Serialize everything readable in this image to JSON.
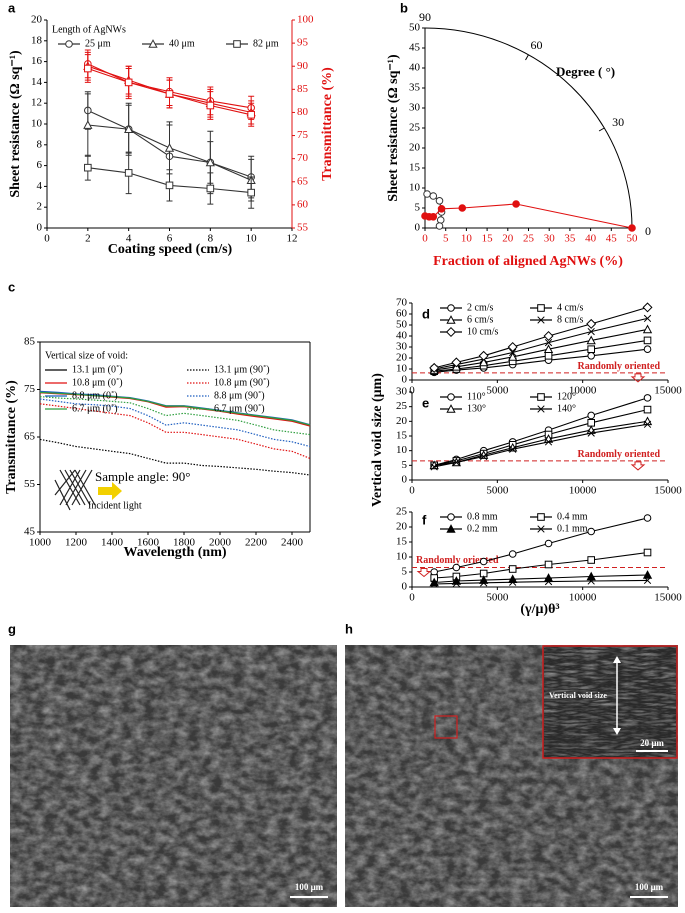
{
  "chart_data": [
    {
      "type": "line",
      "label": "a",
      "xlabel": "Coating speed (cm/s)",
      "ylabel": "Sheet resistance (Ω sq⁻¹)",
      "y2label": "Transmittance (%)",
      "legend_title": "Length of AgNWs",
      "xlim": [
        0,
        12
      ],
      "xticks": [
        0,
        2,
        4,
        6,
        8,
        10,
        12
      ],
      "ylim": [
        0,
        20
      ],
      "yticks": [
        0,
        2,
        4,
        6,
        8,
        10,
        12,
        14,
        16,
        18,
        20
      ],
      "y2lim": [
        55,
        100
      ],
      "y2ticks": [
        55,
        60,
        65,
        70,
        75,
        80,
        85,
        90,
        95,
        100
      ],
      "x": [
        2,
        4,
        6,
        8,
        10
      ],
      "series": [
        {
          "name": "25 μm",
          "color": "#333333",
          "marker": "circle",
          "values": [
            11.3,
            9.5,
            6.9,
            6.3,
            4.9
          ],
          "errors": [
            1.8,
            2.3,
            3.0,
            3.0,
            2.0
          ]
        },
        {
          "name": "40 μm",
          "color": "#333333",
          "marker": "triangle",
          "values": [
            9.9,
            9.5,
            7.7,
            6.3,
            4.6
          ],
          "errors": [
            3.0,
            2.5,
            2.5,
            2.0,
            2.0
          ]
        },
        {
          "name": "82 μm",
          "color": "#333333",
          "marker": "square",
          "values": [
            5.8,
            5.3,
            4.1,
            3.8,
            3.4
          ],
          "errors": [
            1.2,
            2.0,
            1.5,
            1.5,
            1.5
          ]
        },
        {
          "color": "#e01010",
          "marker": "circle",
          "axis": "y2",
          "values": [
            90.5,
            86.5,
            84.5,
            82.5,
            81
          ],
          "errors": [
            3,
            3.5,
            3,
            3,
            2.5
          ]
        },
        {
          "color": "#e01010",
          "marker": "triangle",
          "axis": "y2",
          "values": [
            90,
            87,
            84,
            82,
            80
          ],
          "errors": [
            3,
            3,
            3,
            3,
            2.5
          ]
        },
        {
          "color": "#e01010",
          "marker": "square",
          "axis": "y2",
          "values": [
            89.5,
            86.5,
            84,
            81.5,
            79.5
          ],
          "errors": [
            3,
            3,
            3,
            3,
            2.5
          ]
        }
      ]
    },
    {
      "type": "polar-line",
      "label": "b",
      "xlabel": "Fraction of aligned AgNWs (%)",
      "xlabel_color": "#e01010",
      "ylabel": "Sheet resistance (Ω sq⁻¹)",
      "xlim": [
        0,
        50
      ],
      "xticks": [
        0,
        5,
        10,
        15,
        20,
        25,
        30,
        35,
        40,
        45,
        50
      ],
      "ylim": [
        0,
        50
      ],
      "yticks": [
        0,
        5,
        10,
        15,
        20,
        25,
        30,
        35,
        40,
        45,
        50
      ],
      "angle_ticks": [
        90,
        60,
        30,
        0
      ],
      "angle_label": "Degree ( °)",
      "series": [
        {
          "color": "#333333",
          "marker": "circle",
          "x": [
            0.5,
            2,
            3.5,
            4,
            3.8,
            3.5
          ],
          "values": [
            8.5,
            8,
            6.8,
            4,
            2,
            0.5
          ]
        },
        {
          "color": "#e01010",
          "marker": "circle",
          "filled": true,
          "x": [
            0,
            1,
            2,
            4,
            9,
            22,
            50
          ],
          "values": [
            3,
            2.8,
            2.8,
            4.8,
            5,
            6,
            0
          ]
        }
      ]
    },
    {
      "type": "line",
      "label": "c",
      "xlabel": "Wavelength (nm)",
      "ylabel": "Transmittance (%)",
      "legend_title": "Vertical size of void:",
      "annotations": [
        "Sample angle: 90°",
        "Incident light"
      ],
      "xlim": [
        1000,
        2500
      ],
      "xticks": [
        1000,
        1200,
        1400,
        1600,
        1800,
        2000,
        2200,
        2400
      ],
      "ylim": [
        45,
        85
      ],
      "yticks": [
        45,
        55,
        65,
        75,
        85
      ],
      "x": [
        1000,
        1100,
        1200,
        1300,
        1400,
        1500,
        1600,
        1700,
        1800,
        1900,
        2000,
        2100,
        2200,
        2300,
        2400,
        2500
      ],
      "series": [
        {
          "name": "13.1 μm (0˚)",
          "color": "#000000",
          "values": [
            74.5,
            74.3,
            74,
            73.8,
            73.5,
            73.2,
            72.5,
            71.5,
            71.5,
            71,
            70.5,
            70,
            69.5,
            69,
            68.5,
            67.5
          ]
        },
        {
          "name": "13.1 μm (90˚)",
          "color": "#000000",
          "dash": "dotted",
          "values": [
            64.5,
            63.8,
            63,
            62.5,
            62,
            61.5,
            60.5,
            59.5,
            59.5,
            59,
            58.8,
            58.5,
            58.2,
            57.8,
            57.5,
            57
          ]
        },
        {
          "name": "10.8 μm (0˚)",
          "color": "#e01010",
          "values": [
            74.3,
            74.1,
            73.9,
            73.7,
            73.4,
            73.1,
            72.4,
            71.3,
            71.4,
            70.9,
            70.4,
            69.8,
            69.3,
            68.8,
            68.3,
            67.3
          ]
        },
        {
          "name": "10.8 μm (90˚)",
          "color": "#e01010",
          "dash": "dotted",
          "values": [
            72,
            71.5,
            71,
            70.5,
            70,
            69.5,
            68,
            66,
            66,
            65.5,
            65,
            64.5,
            63.5,
            62.5,
            62,
            60.5
          ]
        },
        {
          "name": "8.8 μm (0˚)",
          "color": "#1f5fc0",
          "values": [
            74.6,
            74.4,
            74.1,
            73.9,
            73.6,
            73.3,
            72.6,
            71.6,
            71.6,
            71.1,
            70.6,
            70.1,
            69.6,
            69.1,
            68.6,
            67.6
          ]
        },
        {
          "name": "8.8 μm (90˚)",
          "color": "#1f5fc0",
          "dash": "dotted",
          "values": [
            73,
            72.5,
            72,
            71.8,
            71.5,
            71,
            69.5,
            67.5,
            68,
            67.5,
            67,
            66.5,
            65.5,
            64.5,
            64,
            63
          ]
        },
        {
          "name": "6.7 μm (0˚)",
          "color": "#2e9e3e",
          "values": [
            74.4,
            74.2,
            74,
            73.7,
            73.5,
            73.2,
            72.5,
            71.5,
            71.5,
            71,
            70.5,
            70,
            69.5,
            69,
            68.5,
            67.5
          ]
        },
        {
          "name": "6.7 μm (90˚)",
          "color": "#2e9e3e",
          "dash": "dotted",
          "values": [
            73.5,
            73.2,
            73,
            72.8,
            72.5,
            72.2,
            71,
            69.5,
            70,
            69.5,
            69,
            68.5,
            67.5,
            66.5,
            66,
            65.5
          ]
        }
      ]
    },
    {
      "type": "line",
      "label": "d",
      "xlim": [
        0,
        15000
      ],
      "xticks": [
        0,
        5000,
        10000,
        15000
      ],
      "ylim": [
        0,
        70
      ],
      "yticks": [
        0,
        10,
        20,
        30,
        40,
        50,
        60,
        70
      ],
      "reference": {
        "value": 6.5,
        "label": "Randomly oriented"
      },
      "x": [
        1300,
        2600,
        4200,
        5900,
        8000,
        10500,
        13800
      ],
      "series": [
        {
          "name": "2 cm/s",
          "color": "#000000",
          "marker": "circle",
          "values": [
            7,
            9,
            11,
            14,
            18,
            22,
            28
          ]
        },
        {
          "name": "4 cm/s",
          "color": "#000000",
          "marker": "square",
          "values": [
            8,
            10,
            13,
            17,
            22,
            28,
            36
          ]
        },
        {
          "name": "6 cm/s",
          "color": "#000000",
          "marker": "triangle",
          "values": [
            9,
            12,
            16,
            21,
            28,
            36,
            46
          ]
        },
        {
          "name": "8 cm/s",
          "color": "#000000",
          "marker": "x",
          "values": [
            10,
            14,
            19,
            25,
            34,
            44,
            56
          ]
        },
        {
          "name": "10 cm/s",
          "color": "#000000",
          "marker": "diamond",
          "values": [
            11,
            16,
            22,
            30,
            40,
            51,
            66
          ]
        }
      ]
    },
    {
      "type": "line",
      "label": "e",
      "ylabel": "Vertical void size (μm)",
      "xlim": [
        0,
        15000
      ],
      "xticks": [
        0,
        5000,
        10000,
        15000
      ],
      "ylim": [
        0,
        30
      ],
      "yticks": [
        0,
        5,
        10,
        15,
        20,
        25,
        30
      ],
      "reference": {
        "value": 6.5,
        "label": "Randomly oriented"
      },
      "x": [
        1300,
        2600,
        4200,
        5900,
        8000,
        10500,
        13800
      ],
      "series": [
        {
          "name": "110°",
          "color": "#000000",
          "marker": "circle",
          "values": [
            5,
            7,
            10,
            13,
            17,
            22,
            28
          ]
        },
        {
          "name": "120°",
          "color": "#000000",
          "marker": "square",
          "values": [
            5,
            6.5,
            9,
            12,
            15.5,
            19.5,
            24
          ]
        },
        {
          "name": "130°",
          "color": "#000000",
          "marker": "triangle",
          "values": [
            5,
            6,
            8.5,
            11,
            14,
            17,
            20
          ]
        },
        {
          "name": "140°",
          "color": "#000000",
          "marker": "x",
          "values": [
            4.5,
            6,
            8,
            10.5,
            13,
            16,
            19
          ]
        }
      ]
    },
    {
      "type": "line",
      "label": "f",
      "xlabel": "(γ/μ)θ³",
      "xlim": [
        0,
        15000
      ],
      "xticks": [
        0,
        5000,
        10000,
        15000
      ],
      "ylim": [
        0,
        25
      ],
      "yticks": [
        0,
        5,
        10,
        15,
        20,
        25
      ],
      "reference": {
        "value": 6.5,
        "label": "Randomly oriented"
      },
      "x": [
        1300,
        2600,
        4200,
        5900,
        8000,
        10500,
        13800
      ],
      "series": [
        {
          "name": "0.8 mm",
          "color": "#000000",
          "marker": "circle",
          "values": [
            5,
            6.5,
            8.5,
            11,
            14.5,
            18.5,
            23
          ]
        },
        {
          "name": "0.4 mm",
          "color": "#000000",
          "marker": "square",
          "values": [
            3,
            3.5,
            4.5,
            6,
            7.5,
            9,
            11.5
          ]
        },
        {
          "name": "0.2 mm",
          "color": "#000000",
          "marker": "triangle",
          "filled": true,
          "values": [
            1.5,
            2,
            2.3,
            2.6,
            3,
            3.5,
            4
          ]
        },
        {
          "name": "0.1 mm",
          "color": "#000000",
          "marker": "x",
          "values": [
            1,
            1.2,
            1.4,
            1.6,
            1.8,
            2,
            2.2
          ]
        }
      ]
    }
  ],
  "images": [
    {
      "label": "g",
      "scale_bar": "100 μm"
    },
    {
      "label": "h",
      "scale_bar": "100 μm",
      "inset": {
        "scale_bar": "20 μm",
        "annotation": "Vertical void size"
      }
    }
  ]
}
